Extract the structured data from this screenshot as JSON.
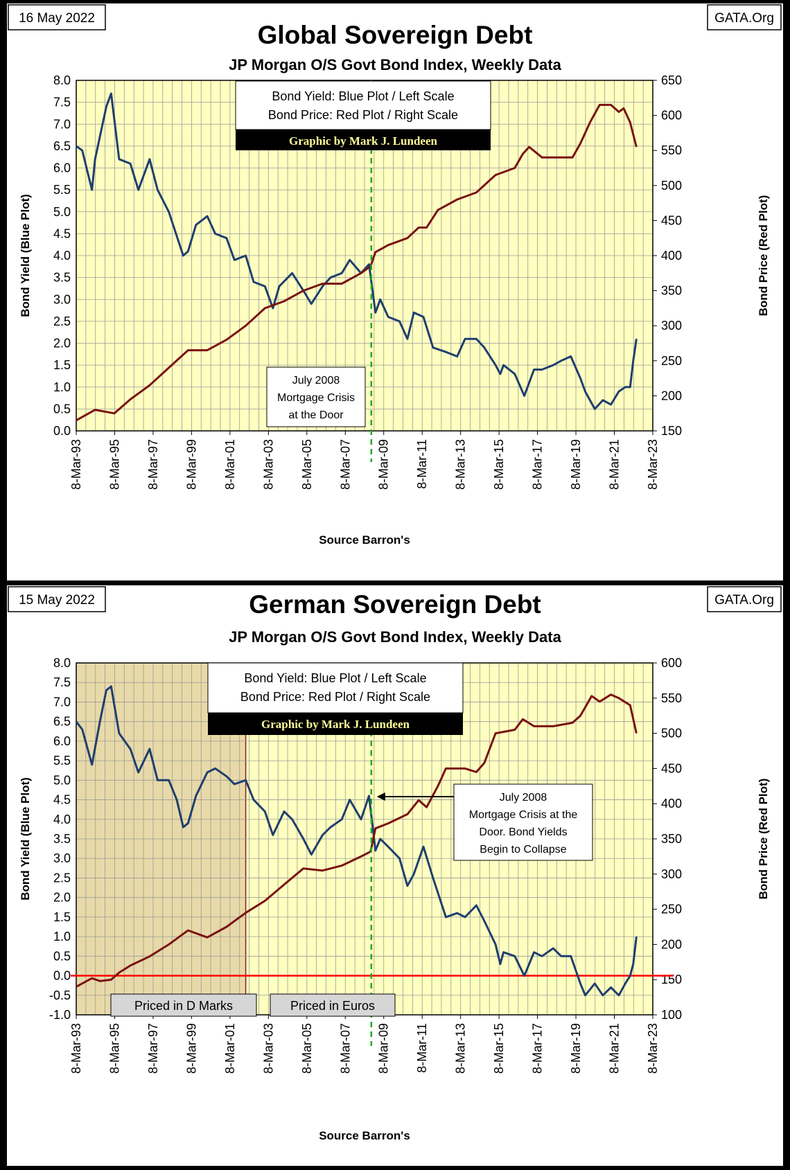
{
  "colors": {
    "plot_background": "#FFFFC0",
    "yield_line": "#1F3F6E",
    "price_line": "#7A1212",
    "crisis_line": "#22AA22",
    "zero_line": "#FF0000",
    "dmark_shade": "#E8D9A8"
  },
  "chart_data": [
    {
      "type": "line",
      "date_label": "16 May 2022",
      "credit": "GATA.Org",
      "title": "Global Sovereign Debt",
      "subtitle": "JP Morgan O/S Govt Bond Index, Weekly Data",
      "legend_lines": [
        "Bond Yield: Blue Plot / Left Scale",
        "Bond Price: Red Plot / Right Scale"
      ],
      "graphic_credit": "Graphic by Mark J. Lundeen",
      "annotation": [
        "July 2008",
        "Mortgage Crisis",
        "at the Door"
      ],
      "xlabel": "Source Barron's",
      "ylabel_left": "Bond Yield  (Blue Plot)",
      "ylabel_right": "Bond  Price  (Red Plot)",
      "x_ticks": [
        "8-Mar-93",
        "8-Mar-95",
        "8-Mar-97",
        "8-Mar-99",
        "8-Mar-01",
        "8-Mar-03",
        "8-Mar-05",
        "8-Mar-07",
        "8-Mar-09",
        "8-Mar-11",
        "8-Mar-13",
        "8-Mar-15",
        "8-Mar-17",
        "8-Mar-19",
        "8-Mar-21",
        "8-Mar-23"
      ],
      "xlim": [
        "1993-03-08",
        "2023-03-08"
      ],
      "ylim_left": [
        0,
        8
      ],
      "yticks_left": [
        "0.0",
        "0.5",
        "1.0",
        "1.5",
        "2.0",
        "2.5",
        "3.0",
        "3.5",
        "4.0",
        "4.5",
        "5.0",
        "5.5",
        "6.0",
        "6.5",
        "7.0",
        "7.5",
        "8.0"
      ],
      "ylim_right": [
        150,
        650
      ],
      "yticks_right": [
        "150",
        "200",
        "250",
        "300",
        "350",
        "400",
        "450",
        "500",
        "550",
        "600",
        "650"
      ],
      "crisis_date": "2008-07-15",
      "series": [
        {
          "axis": "left",
          "x": [
            "1993-03-08",
            "1993-07-01",
            "1994-01-01",
            "1994-03-01",
            "1994-10-01",
            "1995-01-01",
            "1995-06-01",
            "1996-01-01",
            "1996-06-01",
            "1997-01-01",
            "1997-06-01",
            "1998-01-01",
            "1998-10-01",
            "1999-01-01",
            "1999-06-01",
            "2000-01-01",
            "2000-06-01",
            "2001-01-01",
            "2001-06-01",
            "2002-01-01",
            "2002-06-01",
            "2003-01-01",
            "2003-06-01",
            "2003-10-01",
            "2004-06-01",
            "2005-01-01",
            "2005-06-01",
            "2006-01-01",
            "2006-06-01",
            "2007-01-01",
            "2007-06-01",
            "2008-01-01",
            "2008-06-01",
            "2008-10-01",
            "2009-01-01",
            "2009-06-01",
            "2010-01-01",
            "2010-06-01",
            "2010-10-01",
            "2011-04-01",
            "2011-10-01",
            "2012-06-01",
            "2013-01-01",
            "2013-06-01",
            "2014-01-01",
            "2014-06-01",
            "2015-01-01",
            "2015-04-01",
            "2015-06-01",
            "2016-01-01",
            "2016-07-01",
            "2017-01-01",
            "2017-06-01",
            "2018-01-01",
            "2018-06-01",
            "2018-12-01",
            "2019-06-01",
            "2019-09-01",
            "2020-03-01",
            "2020-08-01",
            "2021-01-01",
            "2021-06-01",
            "2021-10-01",
            "2022-01-01",
            "2022-03-01",
            "2022-05-01"
          ],
          "values": [
            6.5,
            6.4,
            5.5,
            6.2,
            7.4,
            7.7,
            6.2,
            6.1,
            5.5,
            6.2,
            5.5,
            5.0,
            4.0,
            4.1,
            4.7,
            4.9,
            4.5,
            4.4,
            3.9,
            4.0,
            3.4,
            3.3,
            2.8,
            3.3,
            3.6,
            3.2,
            2.9,
            3.3,
            3.5,
            3.6,
            3.9,
            3.6,
            3.8,
            2.7,
            3.0,
            2.6,
            2.5,
            2.1,
            2.7,
            2.6,
            1.9,
            1.8,
            1.7,
            2.1,
            2.1,
            1.9,
            1.5,
            1.3,
            1.5,
            1.3,
            0.8,
            1.4,
            1.4,
            1.5,
            1.6,
            1.7,
            1.2,
            0.9,
            0.5,
            0.7,
            0.6,
            0.9,
            1.0,
            1.0,
            1.6,
            2.1
          ]
        },
        {
          "axis": "right",
          "x": [
            "1993-03-08",
            "1994-03-01",
            "1995-03-01",
            "1996-01-01",
            "1997-01-01",
            "1998-01-01",
            "1999-01-01",
            "2000-01-01",
            "2001-01-01",
            "2002-01-01",
            "2003-01-01",
            "2004-01-01",
            "2005-01-01",
            "2006-01-01",
            "2007-01-01",
            "2008-01-01",
            "2008-07-01",
            "2008-10-01",
            "2009-06-01",
            "2010-06-01",
            "2011-01-01",
            "2011-06-01",
            "2012-01-01",
            "2013-01-01",
            "2014-01-01",
            "2015-01-01",
            "2016-01-01",
            "2016-06-01",
            "2016-10-01",
            "2017-06-01",
            "2018-06-01",
            "2019-01-01",
            "2019-06-01",
            "2019-12-01",
            "2020-06-01",
            "2021-01-01",
            "2021-06-01",
            "2021-09-01",
            "2022-01-01",
            "2022-05-01"
          ],
          "values": [
            165,
            180,
            175,
            195,
            215,
            240,
            265,
            265,
            280,
            300,
            325,
            335,
            350,
            360,
            360,
            375,
            385,
            405,
            415,
            425,
            440,
            440,
            465,
            480,
            490,
            515,
            525,
            545,
            555,
            540,
            540,
            540,
            560,
            590,
            615,
            615,
            605,
            610,
            590,
            555
          ]
        }
      ]
    },
    {
      "type": "line",
      "date_label": "15 May 2022",
      "credit": "GATA.Org",
      "title": "German Sovereign Debt",
      "subtitle": "JP Morgan  O/S Govt Bond Index, Weekly Data",
      "legend_lines": [
        "Bond Yield: Blue Plot / Left Scale",
        "Bond Price: Red Plot / Right Scale"
      ],
      "graphic_credit": "Graphic by Mark J. Lundeen",
      "annotation": [
        "July 2008",
        "Mortgage Crisis at the",
        "Door.  Bond Yields",
        "Begin to Collapse"
      ],
      "region_labels": [
        "Priced in D Marks",
        "Priced in Euros"
      ],
      "region_boundary": "2002-01-01",
      "xlabel": "Source Barron's",
      "ylabel_left": "Bond  Yield  (Blue Plot)",
      "ylabel_right": "Bond  Price  (Red Plot)",
      "x_ticks": [
        "8-Mar-93",
        "8-Mar-95",
        "8-Mar-97",
        "8-Mar-99",
        "8-Mar-01",
        "8-Mar-03",
        "8-Mar-05",
        "8-Mar-07",
        "8-Mar-09",
        "8-Mar-11",
        "8-Mar-13",
        "8-Mar-15",
        "8-Mar-17",
        "8-Mar-19",
        "8-Mar-21",
        "8-Mar-23"
      ],
      "xlim": [
        "1993-03-08",
        "2023-03-08"
      ],
      "ylim_left": [
        -1,
        8
      ],
      "yticks_left": [
        "-1.0",
        "-0.5",
        "0.0",
        "0.5",
        "1.0",
        "1.5",
        "2.0",
        "2.5",
        "3.0",
        "3.5",
        "4.0",
        "4.5",
        "5.0",
        "5.5",
        "6.0",
        "6.5",
        "7.0",
        "7.5",
        "8.0"
      ],
      "ylim_right": [
        100,
        600
      ],
      "yticks_right": [
        "100",
        "150",
        "200",
        "250",
        "300",
        "350",
        "400",
        "450",
        "500",
        "550",
        "600"
      ],
      "crisis_date": "2008-07-15",
      "series": [
        {
          "axis": "left",
          "x": [
            "1993-03-08",
            "1993-07-01",
            "1994-01-01",
            "1994-06-01",
            "1994-10-01",
            "1995-01-01",
            "1995-06-01",
            "1996-01-01",
            "1996-06-01",
            "1997-01-01",
            "1997-06-01",
            "1998-01-01",
            "1998-06-01",
            "1998-10-01",
            "1999-01-01",
            "1999-06-01",
            "2000-01-01",
            "2000-06-01",
            "2001-01-01",
            "2001-06-01",
            "2002-01-01",
            "2002-06-01",
            "2003-01-01",
            "2003-06-01",
            "2004-01-01",
            "2004-06-01",
            "2005-01-01",
            "2005-06-01",
            "2006-01-01",
            "2006-06-01",
            "2007-01-01",
            "2007-06-01",
            "2008-01-01",
            "2008-06-01",
            "2008-10-01",
            "2009-01-01",
            "2009-06-01",
            "2010-01-01",
            "2010-06-01",
            "2010-10-01",
            "2011-04-01",
            "2011-10-01",
            "2012-06-01",
            "2013-01-01",
            "2013-06-01",
            "2014-01-01",
            "2014-06-01",
            "2015-01-01",
            "2015-04-01",
            "2015-06-01",
            "2016-01-01",
            "2016-07-01",
            "2017-01-01",
            "2017-06-01",
            "2018-01-01",
            "2018-06-01",
            "2018-12-01",
            "2019-06-01",
            "2019-09-01",
            "2020-03-01",
            "2020-08-01",
            "2021-01-01",
            "2021-06-01",
            "2021-10-01",
            "2022-01-01",
            "2022-03-01",
            "2022-05-01"
          ],
          "values": [
            6.5,
            6.3,
            5.4,
            6.5,
            7.3,
            7.4,
            6.2,
            5.8,
            5.2,
            5.8,
            5.0,
            5.0,
            4.5,
            3.8,
            3.9,
            4.6,
            5.2,
            5.3,
            5.1,
            4.9,
            5.0,
            4.5,
            4.2,
            3.6,
            4.2,
            4.0,
            3.5,
            3.1,
            3.6,
            3.8,
            4.0,
            4.5,
            4.0,
            4.6,
            3.2,
            3.5,
            3.3,
            3.0,
            2.3,
            2.6,
            3.3,
            2.5,
            1.5,
            1.6,
            1.5,
            1.8,
            1.4,
            0.8,
            0.3,
            0.6,
            0.5,
            0.0,
            0.6,
            0.5,
            0.7,
            0.5,
            0.5,
            -0.2,
            -0.5,
            -0.2,
            -0.5,
            -0.3,
            -0.5,
            -0.2,
            0.0,
            0.3,
            1.0
          ]
        },
        {
          "axis": "right",
          "x": [
            "1993-03-08",
            "1994-01-01",
            "1994-06-01",
            "1995-01-01",
            "1995-06-01",
            "1996-01-01",
            "1997-01-01",
            "1998-01-01",
            "1999-01-01",
            "2000-01-01",
            "2001-01-01",
            "2002-01-01",
            "2003-01-01",
            "2004-01-01",
            "2005-01-01",
            "2006-01-01",
            "2007-01-01",
            "2008-01-01",
            "2008-07-01",
            "2008-10-01",
            "2009-06-01",
            "2010-06-01",
            "2011-01-01",
            "2011-06-01",
            "2012-01-01",
            "2012-06-01",
            "2013-06-01",
            "2014-01-01",
            "2014-06-01",
            "2015-01-01",
            "2016-01-01",
            "2016-06-01",
            "2017-01-01",
            "2018-01-01",
            "2019-01-01",
            "2019-06-01",
            "2020-01-01",
            "2020-06-01",
            "2021-01-01",
            "2021-06-01",
            "2022-01-01",
            "2022-05-01"
          ],
          "values": [
            140,
            152,
            148,
            150,
            160,
            170,
            183,
            200,
            220,
            210,
            225,
            245,
            262,
            285,
            308,
            305,
            312,
            325,
            332,
            365,
            372,
            385,
            405,
            395,
            425,
            450,
            450,
            445,
            458,
            500,
            505,
            520,
            510,
            510,
            515,
            525,
            553,
            545,
            555,
            550,
            540,
            500
          ]
        }
      ]
    }
  ]
}
